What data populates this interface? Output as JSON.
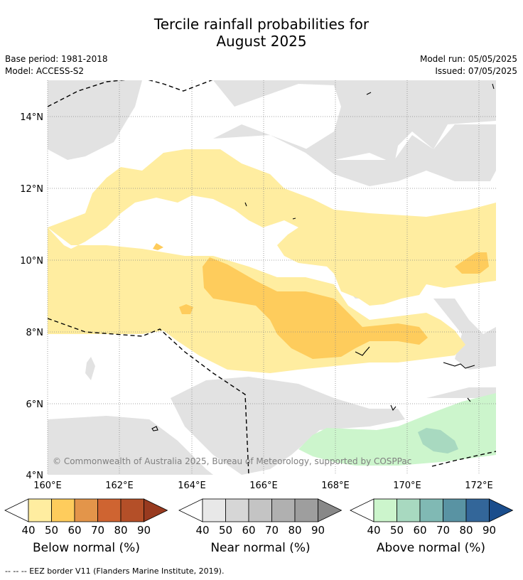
{
  "title_line1": "Tercile rainfall probabilities for",
  "title_line2": "August 2025",
  "meta": {
    "base_period": "Base period: 1981-2018",
    "model": "Model: ACCESS-S2",
    "model_run": "Model run: 05/05/2025",
    "issued": "Issued: 07/05/2025"
  },
  "map": {
    "lat_ticks": [
      "14°N",
      "12°N",
      "10°N",
      "8°N",
      "6°N",
      "4°N"
    ],
    "lon_ticks": [
      "160°E",
      "162°E",
      "164°E",
      "166°E",
      "168°E",
      "170°E",
      "172°E"
    ],
    "copyright": "© Commonwealth of Australia 2025, Bureau of Meteorology, supported by COSPPac"
  },
  "legends": [
    {
      "title": "Below normal (%)",
      "labels": [
        "40",
        "50",
        "60",
        "70",
        "80",
        "90"
      ],
      "colors": [
        "#ffeda0",
        "#fecc5c",
        "#e3954a",
        "#cf6431",
        "#b44f28",
        "#983a1f"
      ]
    },
    {
      "title": "Near normal (%)",
      "labels": [
        "40",
        "50",
        "60",
        "70",
        "80",
        "90"
      ],
      "colors": [
        "#e8e8e8",
        "#d6d6d6",
        "#c4c4c4",
        "#b0b0b0",
        "#9e9e9e",
        "#888888"
      ]
    },
    {
      "title": "Above normal (%)",
      "labels": [
        "40",
        "50",
        "60",
        "70",
        "80",
        "90"
      ],
      "colors": [
        "#ccf5cc",
        "#a8d9c0",
        "#80b9b4",
        "#5993a3",
        "#336699",
        "#1a4d8c"
      ]
    }
  ],
  "footnote": "--  --  -- EEZ border V11 (Flanders Marine Institute, 2019)."
}
